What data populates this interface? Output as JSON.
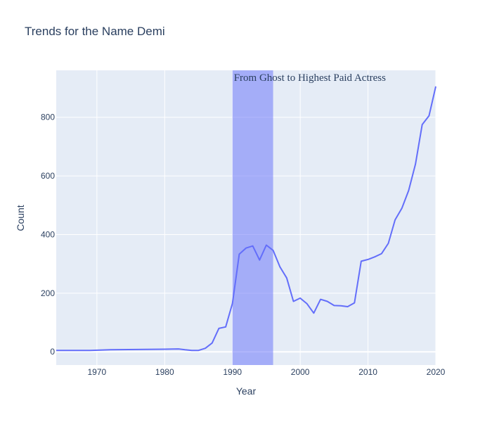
{
  "chart_data": {
    "type": "line",
    "title": "Trends for the Name Demi",
    "xlabel": "Year",
    "ylabel": "Count",
    "xlim": [
      1964,
      2020
    ],
    "ylim": [
      -45,
      960
    ],
    "x_ticks": [
      1970,
      1980,
      1990,
      2000,
      2010,
      2020
    ],
    "y_ticks": [
      0,
      200,
      400,
      600,
      800
    ],
    "grid": true,
    "line_color": "#636efa",
    "plot_bg": "#e5ecf6",
    "highlight": {
      "x0": 1990,
      "x1": 1996,
      "color": "#636efa",
      "label": "From Ghost to Highest Paid Actress"
    },
    "series": [
      {
        "x": [
          1964,
          1969,
          1972,
          1976,
          1980,
          1982,
          1983,
          1984,
          1985,
          1986,
          1987,
          1988,
          1989,
          1990,
          1991,
          1992,
          1993,
          1994,
          1995,
          1996,
          1997,
          1998,
          1999,
          2000,
          2001,
          2002,
          2003,
          2004,
          2005,
          2006,
          2007,
          2008,
          2009,
          2010,
          2011,
          2012,
          2013,
          2014,
          2015,
          2016,
          2017,
          2018,
          2019,
          2020
        ],
        "values": [
          5,
          5,
          7,
          8,
          9,
          10,
          7,
          5,
          5,
          12,
          30,
          80,
          85,
          165,
          333,
          354,
          361,
          313,
          364,
          346,
          290,
          252,
          172,
          183,
          164,
          132,
          179,
          172,
          158,
          157,
          154,
          167,
          309,
          315,
          324,
          335,
          370,
          450,
          490,
          550,
          640,
          775,
          805,
          905
        ]
      }
    ]
  }
}
